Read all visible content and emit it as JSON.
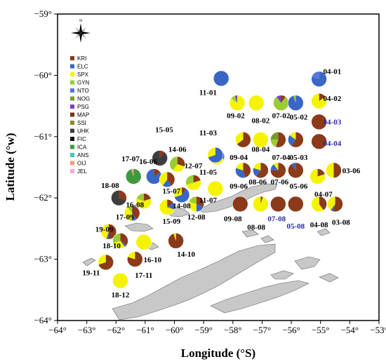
{
  "chart_data": {
    "type": "map-pie",
    "xlabel": "Longitude (°S)",
    "ylabel": "Latitude (°w)",
    "xlim": [
      -64,
      -53
    ],
    "ylim": [
      -64,
      -59
    ],
    "x_ticks": [
      -64,
      -63,
      -62,
      -61,
      -60,
      -59,
      -58,
      -57,
      -56,
      -55,
      -54,
      -53
    ],
    "x_tick_labels": [
      "−64°",
      "−63°",
      "−62°",
      "−61°",
      "−60°",
      "−59°",
      "−58°",
      "−57°",
      "−56°",
      "−55°",
      "−54°",
      "−53°"
    ],
    "y_ticks": [
      -59,
      -60,
      -61,
      -62,
      -63,
      -64
    ],
    "y_tick_labels": [
      "−59°",
      "−60°",
      "−61°",
      "−62°",
      "−63°",
      "−64°"
    ],
    "compass": {
      "north_label": "N"
    },
    "legend": [
      {
        "code": "KRI",
        "color": "#8b3a1a"
      },
      {
        "code": "ELC",
        "color": "#3a66c4"
      },
      {
        "code": "SPX",
        "color": "#f4f400"
      },
      {
        "code": "GYN",
        "color": "#9acd32"
      },
      {
        "code": "NTO",
        "color": "#5577dd"
      },
      {
        "code": "NOG",
        "color": "#7a9a28"
      },
      {
        "code": "PSG",
        "color": "#7b3fc2"
      },
      {
        "code": "MAP",
        "color": "#7a3412"
      },
      {
        "code": "SSI",
        "color": "#8c8c24"
      },
      {
        "code": "UHK",
        "color": "#3d3d3d"
      },
      {
        "code": "FIC",
        "color": "#111111"
      },
      {
        "code": "ICA",
        "color": "#3f9a3f"
      },
      {
        "code": "ANS",
        "color": "#3fc8c8"
      },
      {
        "code": "OIJ",
        "color": "#f0a080"
      },
      {
        "code": "JEL",
        "color": "#f0a8d8"
      }
    ],
    "stations": [
      {
        "id": "04-01",
        "lon": -55.05,
        "lat": -60.06,
        "label_lon": -54.6,
        "label_lat": -59.98,
        "fractions": [
          0,
          0.8,
          0,
          0,
          0.2
        ],
        "label_color": "#000"
      },
      {
        "id": "11-01",
        "lon": -58.4,
        "lat": -60.05,
        "label_lon": -58.85,
        "label_lat": -60.32,
        "fractions": [
          0,
          1.0
        ],
        "label_color": "#000"
      },
      {
        "id": "09-02",
        "lon": -57.85,
        "lat": -60.45,
        "label_lon": -57.9,
        "label_lat": -60.7,
        "fractions": [
          0,
          0,
          0.85,
          0.1,
          0,
          0,
          0.05
        ],
        "label_color": "#000"
      },
      {
        "id": "08-02",
        "lon": -57.2,
        "lat": -60.45,
        "label_lon": -57.05,
        "label_lat": -60.78,
        "fractions": [
          0,
          0,
          1.0
        ],
        "label_color": "#000"
      },
      {
        "id": "07-02",
        "lon": -56.35,
        "lat": -60.45,
        "label_lon": -56.35,
        "label_lat": -60.7,
        "fractions": [
          0.1,
          0,
          0,
          0.8,
          0,
          0,
          0.1
        ],
        "label_color": "#000"
      },
      {
        "id": "05-02",
        "lon": -55.85,
        "lat": -60.45,
        "label_lon": -55.75,
        "label_lat": -60.72,
        "fractions": [
          0,
          0.95,
          0,
          0.05
        ],
        "label_color": "#000"
      },
      {
        "id": "04-02",
        "lon": -55.05,
        "lat": -60.42,
        "label_lon": -54.6,
        "label_lat": -60.42,
        "fractions": [
          0.15,
          0,
          0.85
        ],
        "label_color": "#000"
      },
      {
        "id": "04-03",
        "lon": -55.05,
        "lat": -60.76,
        "label_lon": -54.6,
        "label_lat": -60.8,
        "fractions": [
          1.0
        ],
        "label_color": "#2a2aa0"
      },
      {
        "id": "04-04",
        "lon": -55.05,
        "lat": -61.08,
        "label_lon": -54.6,
        "label_lat": -61.15,
        "fractions": [
          1.0
        ],
        "label_color": "#2a2aa0"
      },
      {
        "id": "11-03",
        "lon": -58.55,
        "lat": -61.33,
        "label_lon": -58.85,
        "label_lat": -60.98,
        "fractions": [
          0,
          0.3,
          0.5,
          0.2
        ],
        "label_color": "#000"
      },
      {
        "id": "09-04",
        "lon": -57.65,
        "lat": -61.05,
        "label_lon": -57.8,
        "label_lat": -61.38,
        "fractions": [
          0.65,
          0,
          0.35
        ],
        "label_color": "#000"
      },
      {
        "id": "08-04",
        "lon": -57.05,
        "lat": -61.05,
        "label_lon": -57.05,
        "label_lat": -61.25,
        "fractions": [
          0,
          0,
          1.0
        ],
        "label_color": "#000"
      },
      {
        "id": "07-04",
        "lon": -56.45,
        "lat": -61.05,
        "label_lon": -56.35,
        "label_lat": -61.38,
        "fractions": [
          0.55,
          0,
          0,
          0.2,
          0,
          0.25
        ],
        "label_color": "#000"
      },
      {
        "id": "05-03",
        "lon": -55.85,
        "lat": -61.05,
        "label_lon": -55.75,
        "label_lat": -61.38,
        "fractions": [
          0.6,
          0.25,
          0.15
        ],
        "label_color": "#000"
      },
      {
        "id": "11-05",
        "lon": -58.6,
        "lat": -61.3,
        "label_lon": -58.85,
        "label_lat": -61.62,
        "fractions": [
          0,
          0.7,
          0.3
        ],
        "label_color": "#000"
      },
      {
        "id": "09-06",
        "lon": -57.65,
        "lat": -61.55,
        "label_lon": -57.8,
        "label_lat": -61.85,
        "fractions": [
          0.45,
          0.35,
          0.2
        ],
        "label_color": "#000"
      },
      {
        "id": "08-06",
        "lon": -57.05,
        "lat": -61.55,
        "label_lon": -57.15,
        "label_lat": -61.78,
        "fractions": [
          0.6,
          0.2,
          0.2
        ],
        "label_color": "#000"
      },
      {
        "id": "07-06",
        "lon": -56.45,
        "lat": -61.55,
        "label_lon": -56.4,
        "label_lat": -61.78,
        "fractions": [
          0.75,
          0.15,
          0.1
        ],
        "label_color": "#000"
      },
      {
        "id": "05-06",
        "lon": -55.85,
        "lat": -61.55,
        "label_lon": -55.75,
        "label_lat": -61.85,
        "fractions": [
          0.9,
          0.1
        ],
        "label_color": "#000"
      },
      {
        "id": "04-07",
        "lon": -55.1,
        "lat": -61.65,
        "label_lon": -54.9,
        "label_lat": -61.98,
        "fractions": [
          0.2,
          0,
          0.8
        ],
        "label_color": "#000"
      },
      {
        "id": "03-06",
        "lon": -54.55,
        "lat": -61.55,
        "label_lon": -53.95,
        "label_lat": -61.6,
        "fractions": [
          0.5,
          0,
          0.5
        ],
        "label_color": "#000"
      },
      {
        "id": "11-07",
        "lon": -58.6,
        "lat": -61.85,
        "label_lon": -58.85,
        "label_lat": -62.08,
        "fractions": [
          0,
          0,
          1.0
        ],
        "label_color": "#000"
      },
      {
        "id": "09-08",
        "lon": -57.75,
        "lat": -62.1,
        "label_lon": -58.0,
        "label_lat": -62.38,
        "fractions": [
          1.0
        ],
        "label_color": "#000"
      },
      {
        "id": "08-08",
        "lon": -57.05,
        "lat": -62.1,
        "label_lon": -57.2,
        "label_lat": -62.52,
        "fractions": [
          0.05,
          0,
          0.95
        ],
        "label_color": "#000"
      },
      {
        "id": "07-08",
        "lon": -56.45,
        "lat": -62.1,
        "label_lon": -56.5,
        "label_lat": -62.38,
        "fractions": [
          1.0
        ],
        "label_color": "#2a2aa0"
      },
      {
        "id": "05-08",
        "lon": -55.85,
        "lat": -62.1,
        "label_lon": -55.85,
        "label_lat": -62.5,
        "fractions": [
          1.0
        ],
        "label_color": "#2a2aa0"
      },
      {
        "id": "04-08",
        "lon": -55.05,
        "lat": -62.1,
        "label_lon": -55.05,
        "label_lat": -62.48,
        "fractions": [
          0.4,
          0,
          0.6
        ],
        "label_color": "#000"
      },
      {
        "id": "03-08",
        "lon": -54.5,
        "lat": -62.1,
        "label_lon": -54.3,
        "label_lat": -62.44,
        "fractions": [
          0.55,
          0.05,
          0.4
        ],
        "label_color": "#000"
      },
      {
        "id": "15-05",
        "lon": -60.5,
        "lat": -61.35,
        "label_lon": -60.35,
        "label_lat": -60.93,
        "fractions": [
          0.1,
          0,
          0,
          0,
          0,
          0,
          0,
          0,
          0,
          0.9
        ],
        "label_color": "#000"
      },
      {
        "id": "14-06",
        "lon": -59.9,
        "lat": -61.45,
        "label_lon": -59.9,
        "label_lat": -61.25,
        "fractions": [
          0.3,
          0,
          0.3,
          0.4
        ],
        "label_color": "#000"
      },
      {
        "id": "12-07",
        "lon": -59.35,
        "lat": -61.75,
        "label_lon": -59.35,
        "label_lat": -61.52,
        "fractions": [
          0.2,
          0,
          0.5,
          0.3
        ],
        "label_color": "#000"
      },
      {
        "id": "16-06",
        "lon": -60.7,
        "lat": -61.65,
        "label_lon": -60.9,
        "label_lat": -61.45,
        "fractions": [
          0.15,
          0.85
        ],
        "label_color": "#000"
      },
      {
        "id": "15-07",
        "lon": -60.25,
        "lat": -61.7,
        "label_lon": -60.1,
        "label_lat": -61.93,
        "fractions": [
          0.4,
          0.2,
          0.4
        ],
        "label_color": "#000"
      },
      {
        "id": "14-08",
        "lon": -59.75,
        "lat": -61.95,
        "label_lon": -59.75,
        "label_lat": -62.17,
        "fractions": [
          0.1,
          0.6,
          0.3
        ],
        "label_color": "#000"
      },
      {
        "id": "12-08",
        "lon": -59.25,
        "lat": -62.1,
        "label_lon": -59.25,
        "label_lat": -62.35,
        "fractions": [
          0.3,
          0.2,
          0.3,
          0.2
        ],
        "label_color": "#000"
      },
      {
        "id": "17-07",
        "lon": -61.4,
        "lat": -61.65,
        "label_lon": -61.5,
        "label_lat": -61.4,
        "fractions": [
          0,
          0,
          0,
          0,
          0,
          0,
          0,
          0,
          0,
          0,
          0,
          0.95,
          0,
          0.05
        ],
        "label_color": "#000"
      },
      {
        "id": "16-08",
        "lon": -61.05,
        "lat": -62.05,
        "label_lon": -61.35,
        "label_lat": -62.15,
        "fractions": [
          0.2,
          0,
          0.6,
          0.2
        ],
        "label_color": "#000"
      },
      {
        "id": "15-09",
        "lon": -60.25,
        "lat": -62.15,
        "label_lon": -60.1,
        "label_lat": -62.42,
        "fractions": [
          0.15,
          0.15,
          0.7
        ],
        "label_color": "#000"
      },
      {
        "id": "18-08",
        "lon": -61.9,
        "lat": -62.0,
        "label_lon": -62.2,
        "label_lat": -61.84,
        "fractions": [
          0.3,
          0,
          0,
          0,
          0,
          0,
          0,
          0,
          0,
          0.7
        ],
        "label_color": "#000"
      },
      {
        "id": "17-09",
        "lon": -61.45,
        "lat": -62.25,
        "label_lon": -61.7,
        "label_lat": -62.35,
        "fractions": [
          0.4,
          0.1,
          0.4,
          0.1
        ],
        "label_color": "#000"
      },
      {
        "id": "19-09",
        "lon": -62.25,
        "lat": -62.55,
        "label_lon": -62.4,
        "label_lat": -62.55,
        "fractions": [
          0.5,
          0.05,
          0.45
        ],
        "label_color": "#000"
      },
      {
        "id": "18-10",
        "lon": -61.85,
        "lat": -62.7,
        "label_lon": -62.15,
        "label_lat": -62.82,
        "fractions": [
          0.35,
          0.05,
          0.3,
          0.3
        ],
        "label_color": "#000"
      },
      {
        "id": "16-10",
        "lon": -61.05,
        "lat": -62.72,
        "label_lon": -60.75,
        "label_lat": -63.05,
        "fractions": [
          0,
          0,
          1.0
        ],
        "label_color": "#000"
      },
      {
        "id": "14-10",
        "lon": -59.95,
        "lat": -62.7,
        "label_lon": -59.6,
        "label_lat": -62.96,
        "fractions": [
          0.95,
          0,
          0.05
        ],
        "label_color": "#000"
      },
      {
        "id": "19-11",
        "lon": -62.35,
        "lat": -63.05,
        "label_lon": -62.85,
        "label_lat": -63.26,
        "fractions": [
          0.7,
          0,
          0.3
        ],
        "label_color": "#000"
      },
      {
        "id": "17-11",
        "lon": -61.35,
        "lat": -63.0,
        "label_lon": -61.05,
        "label_lat": -63.3,
        "fractions": [
          0.8,
          0,
          0.2
        ],
        "label_color": "#000"
      },
      {
        "id": "18-12",
        "lon": -61.85,
        "lat": -63.35,
        "label_lon": -61.85,
        "label_lat": -63.62,
        "fractions": [
          0,
          0,
          1.0
        ],
        "label_color": "#000"
      }
    ]
  }
}
